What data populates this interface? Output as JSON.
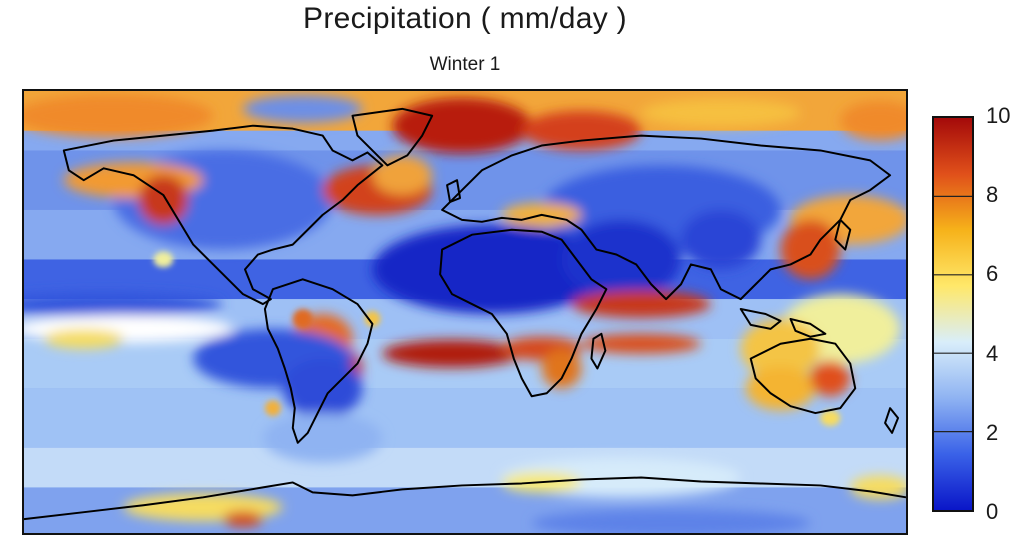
{
  "title": "Precipitation ( mm/day )",
  "subtitle": "Winter 1",
  "colorbar": {
    "min": 0,
    "max": 10,
    "ticks": [
      "0",
      "2",
      "4",
      "6",
      "8",
      "10"
    ],
    "tick_values": [
      0,
      2,
      4,
      6,
      8,
      10
    ],
    "colors": [
      "#0a16c8",
      "#3a62e8",
      "#8fb3f2",
      "#d9eefa",
      "#ffe86a",
      "#f6b21a",
      "#e0501a",
      "#a40a0a"
    ]
  },
  "map": {
    "projection": "equirectangular",
    "content": "global precipitation field with continent outlines"
  }
}
